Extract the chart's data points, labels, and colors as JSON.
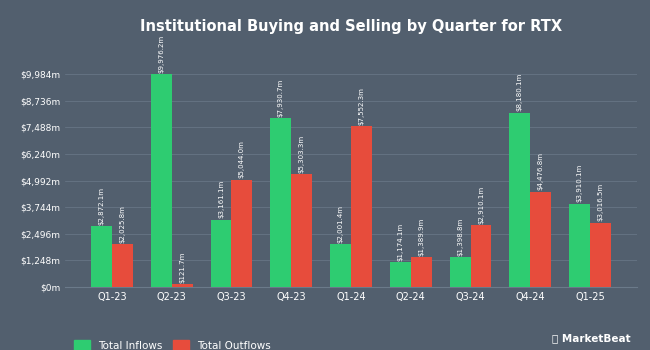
{
  "title": "Institutional Buying and Selling by Quarter for RTX",
  "categories": [
    "Q1-23",
    "Q2-23",
    "Q3-23",
    "Q4-23",
    "Q1-24",
    "Q2-24",
    "Q3-24",
    "Q4-24",
    "Q1-25"
  ],
  "inflows": [
    2872.1,
    9976.2,
    3161.1,
    7930.7,
    2001.4,
    1174.1,
    1398.8,
    8180.1,
    3910.1
  ],
  "outflows": [
    2025.8,
    121.7,
    5044.0,
    5303.3,
    7552.3,
    1389.9,
    2910.1,
    4476.8,
    3016.5
  ],
  "inflow_labels": [
    "$2,872.1m",
    "$9,976.2m",
    "$3,161.1m",
    "$7,930.7m",
    "$2,001.4m",
    "$1,174.1m",
    "$1,398.8m",
    "$8,180.1m",
    "$3,910.1m"
  ],
  "outflow_labels": [
    "$2,025.8m",
    "$121.7m",
    "$5,044.0m",
    "$5,303.3m",
    "$7,552.3m",
    "$1,389.9m",
    "$2,910.1m",
    "$4,476.8m",
    "$3,016.5m"
  ],
  "inflow_color": "#2ecc71",
  "outflow_color": "#e74c3c",
  "background_color": "#525f6e",
  "plot_bg_color": "#525f6e",
  "text_color": "#ffffff",
  "grid_color": "#6b7a8a",
  "ylabel_ticks": [
    "$0m",
    "$1,248m",
    "$2,496m",
    "$3,744m",
    "$4,992m",
    "$6,240m",
    "$7,488m",
    "$8,736m",
    "$9,984m"
  ],
  "ytick_values": [
    0,
    1248,
    2496,
    3744,
    4992,
    6240,
    7488,
    8736,
    9984
  ],
  "ylim": [
    0,
    11500
  ],
  "bar_width": 0.35,
  "legend_inflow": "Total Inflows",
  "legend_outflow": "Total Outflows"
}
